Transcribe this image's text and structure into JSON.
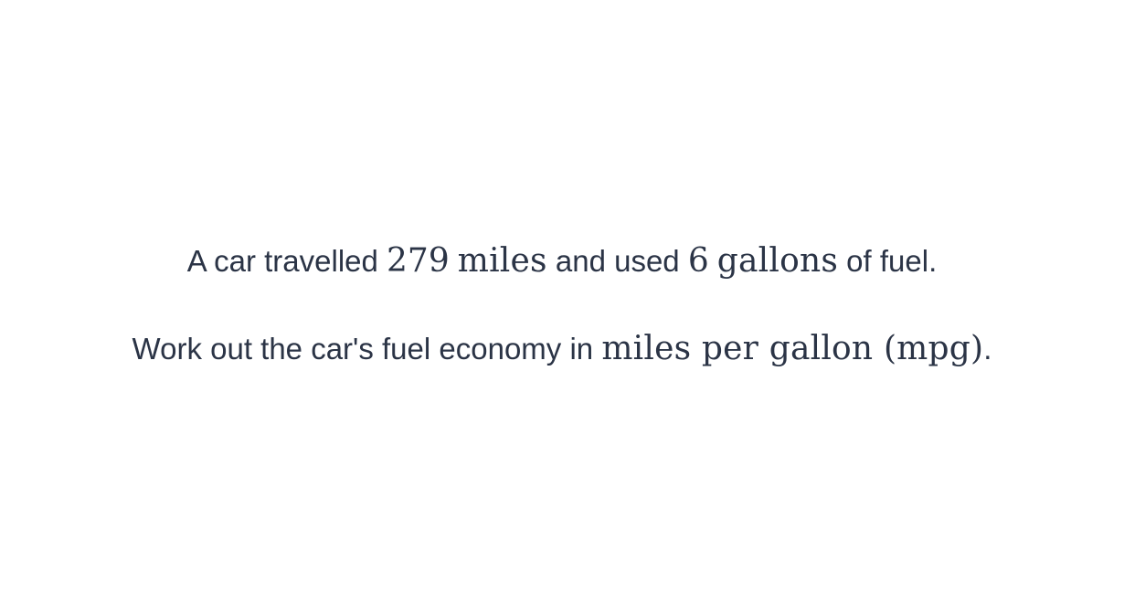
{
  "question": {
    "line1": {
      "prefix": "A car travelled ",
      "distance_value": "279",
      "distance_unit": "miles",
      "middle": " and used ",
      "fuel_value": "6",
      "fuel_unit": "gallons",
      "suffix": " of fuel."
    },
    "line2": {
      "prefix": "Work out the car's fuel economy in ",
      "unit_phrase": "miles per gallon (mpg)",
      "suffix": "."
    }
  }
}
